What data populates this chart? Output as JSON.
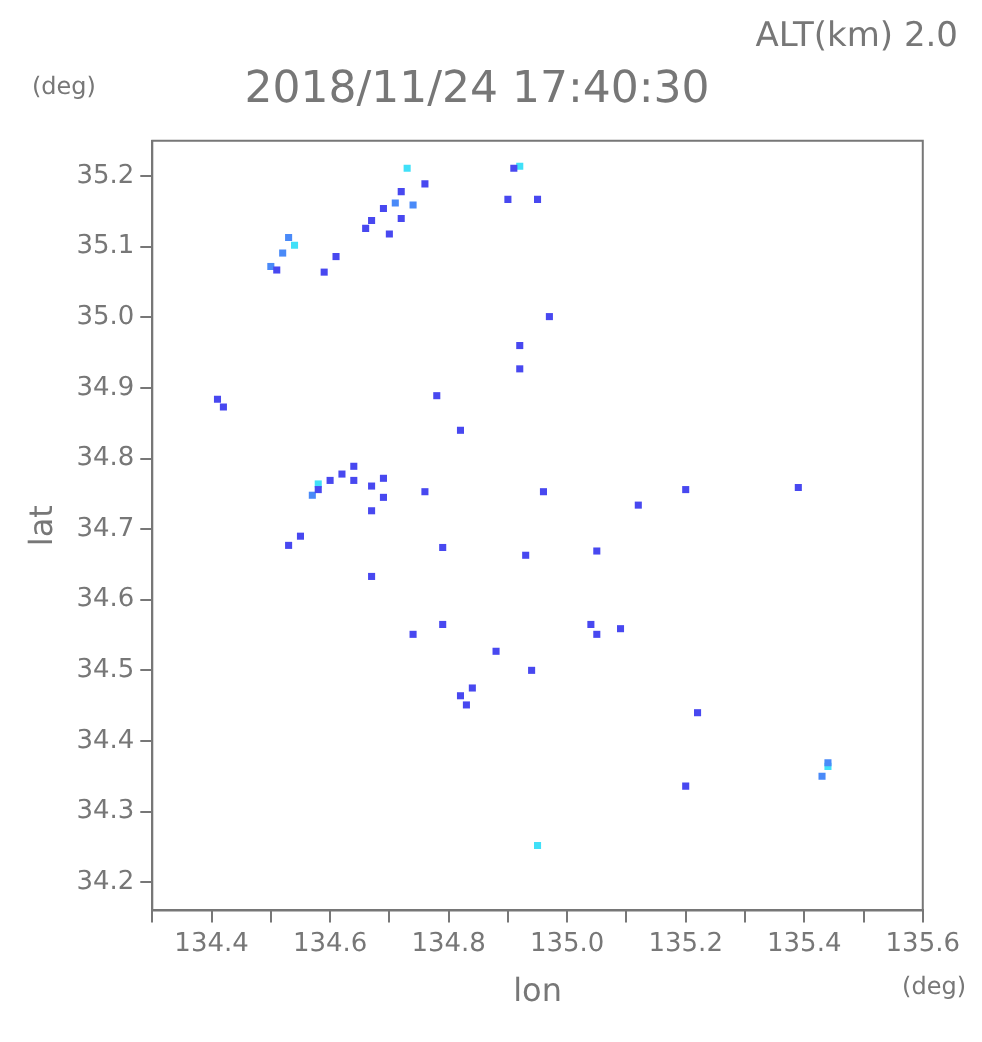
{
  "chart_data": {
    "type": "scatter",
    "title": "2018/11/24 17:40:30",
    "subtitle": "ALT(km) 2.0",
    "xlabel": "lon",
    "ylabel": "lat",
    "annotations": [
      "(deg)",
      "(deg)"
    ],
    "marker": "square",
    "xlim": [
      134.3,
      135.6
    ],
    "ylim": [
      34.16,
      35.25
    ],
    "xticks": [
      {
        "value": 134.3,
        "label": null
      },
      134.4,
      {
        "value": 134.5,
        "label": null
      },
      134.6,
      {
        "value": 134.7,
        "label": null
      },
      134.8,
      {
        "value": 134.9,
        "label": null
      },
      {
        "value": 135.0,
        "label": "135.0"
      },
      {
        "value": 135.1,
        "label": null
      },
      135.2,
      {
        "value": 135.3,
        "label": null
      },
      135.4,
      {
        "value": 135.5,
        "label": null
      },
      135.6
    ],
    "yticks": [
      34.2,
      34.3,
      34.4,
      34.5,
      34.6,
      34.7,
      34.8,
      34.9,
      {
        "value": 35.0,
        "label": "35.0"
      },
      35.1,
      35.2
    ],
    "series": [
      {
        "color": "#4848f0",
        "x": [
          134.67,
          134.69,
          134.72,
          134.76,
          134.66,
          134.72,
          134.7,
          134.51,
          134.61,
          134.59,
          134.91,
          134.9,
          134.95,
          134.97,
          134.92,
          134.92,
          134.41,
          134.42,
          134.78,
          134.82,
          134.58,
          134.6,
          134.62,
          134.64,
          134.64,
          134.69,
          134.67,
          134.69,
          134.67,
          134.53,
          134.55,
          134.67,
          134.79,
          134.76,
          134.96,
          134.74,
          134.79,
          134.83,
          134.82,
          134.84,
          134.88,
          134.94,
          135.05,
          135.04,
          135.05,
          135.09,
          135.2,
          135.39,
          134.93,
          135.12,
          135.2,
          135.22
        ],
        "values": [
          35.137,
          35.154,
          35.178,
          35.189,
          35.126,
          35.14,
          35.118,
          35.067,
          35.086,
          35.064,
          35.211,
          35.167,
          35.167,
          35.001,
          34.96,
          34.927,
          34.884,
          34.873,
          34.889,
          34.84,
          34.756,
          34.769,
          34.778,
          34.769,
          34.789,
          34.772,
          34.761,
          34.745,
          34.726,
          34.677,
          34.69,
          34.633,
          34.674,
          34.753,
          34.753,
          34.551,
          34.565,
          34.451,
          34.464,
          34.475,
          34.527,
          34.5,
          34.669,
          34.565,
          34.551,
          34.559,
          34.756,
          34.759,
          34.663,
          34.734,
          34.336,
          34.44
        ]
      },
      {
        "color": "#4a8af8",
        "x": [
          134.52,
          134.53,
          134.5,
          134.74,
          134.71,
          135.44,
          135.43,
          134.57
        ],
        "values": [
          35.091,
          35.113,
          35.072,
          35.159,
          35.162,
          34.369,
          34.35,
          34.748
        ]
      },
      {
        "color": "#40e0f8",
        "x": [
          134.54,
          134.73,
          134.92,
          135.44,
          134.58,
          134.95
        ],
        "values": [
          35.102,
          35.211,
          35.214,
          34.364,
          34.764,
          34.252
        ]
      }
    ]
  }
}
